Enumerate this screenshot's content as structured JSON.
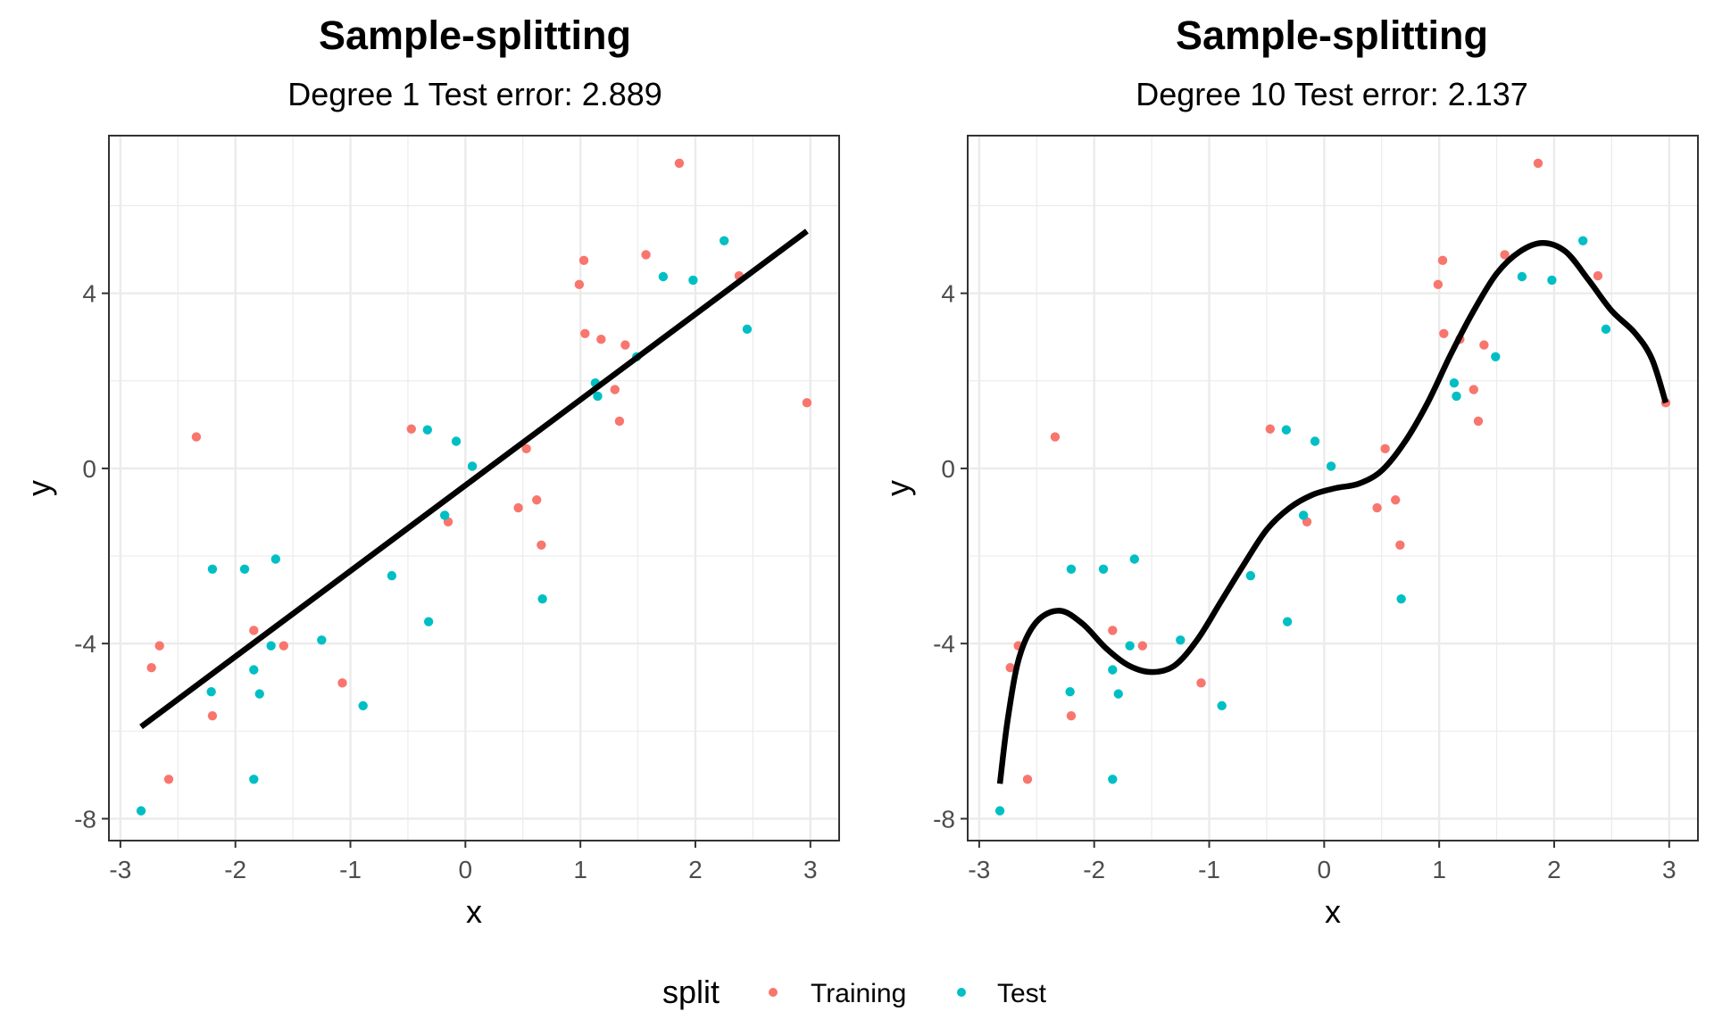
{
  "legend": {
    "title": "split",
    "position": "bottom",
    "entries": [
      {
        "label": "Training",
        "color": "#F8766D"
      },
      {
        "label": "Test",
        "color": "#00BFC4"
      }
    ]
  },
  "colors": {
    "training": "#F8766D",
    "test": "#00BFC4",
    "fit_line": "#000000",
    "grid": "#EBEBEB",
    "panel_border": "#333333"
  },
  "chart_data": [
    {
      "type": "scatter",
      "title": "Sample-splitting",
      "subtitle": "Degree 1 Test error: 2.889",
      "xlabel": "x",
      "ylabel": "y",
      "xlim": [
        -3.1,
        3.25
      ],
      "ylim": [
        -8.5,
        7.6
      ],
      "xticks": [
        -3,
        -2,
        -1,
        0,
        1,
        2,
        3
      ],
      "yticks": [
        -8,
        -4,
        0,
        4
      ],
      "grid": true,
      "series": [
        {
          "name": "Training",
          "points": [
            [
              -2.73,
              -4.55
            ],
            [
              -2.66,
              -4.05
            ],
            [
              -2.58,
              -7.1
            ],
            [
              -2.34,
              0.72
            ],
            [
              -2.2,
              -5.65
            ],
            [
              -1.84,
              -3.7
            ],
            [
              -1.58,
              -4.05
            ],
            [
              -1.07,
              -4.9
            ],
            [
              -0.47,
              0.9
            ],
            [
              -0.15,
              -1.22
            ],
            [
              0.46,
              -0.9
            ],
            [
              0.53,
              0.45
            ],
            [
              0.62,
              -0.72
            ],
            [
              0.66,
              -1.75
            ],
            [
              0.99,
              4.2
            ],
            [
              1.03,
              4.75
            ],
            [
              1.04,
              3.08
            ],
            [
              1.18,
              2.95
            ],
            [
              1.3,
              1.8
            ],
            [
              1.34,
              1.08
            ],
            [
              1.39,
              2.82
            ],
            [
              1.57,
              4.88
            ],
            [
              1.86,
              6.97
            ],
            [
              2.38,
              4.4
            ],
            [
              2.97,
              1.5
            ]
          ]
        },
        {
          "name": "Test",
          "points": [
            [
              -2.82,
              -7.82
            ],
            [
              -2.21,
              -5.1
            ],
            [
              -2.2,
              -2.3
            ],
            [
              -1.92,
              -2.3
            ],
            [
              -1.84,
              -4.6
            ],
            [
              -1.84,
              -7.1
            ],
            [
              -1.79,
              -5.15
            ],
            [
              -1.69,
              -4.05
            ],
            [
              -1.65,
              -2.07
            ],
            [
              -1.25,
              -3.92
            ],
            [
              -0.89,
              -5.42
            ],
            [
              -0.64,
              -2.45
            ],
            [
              -0.33,
              0.88
            ],
            [
              -0.32,
              -3.5
            ],
            [
              -0.18,
              -1.07
            ],
            [
              -0.08,
              0.62
            ],
            [
              0.06,
              0.05
            ],
            [
              0.67,
              -2.98
            ],
            [
              1.13,
              1.95
            ],
            [
              1.15,
              1.65
            ],
            [
              1.49,
              2.55
            ],
            [
              1.72,
              4.38
            ],
            [
              1.98,
              4.3
            ],
            [
              2.25,
              5.2
            ],
            [
              2.45,
              3.18
            ]
          ]
        },
        {
          "name": "Fit",
          "kind": "line",
          "points": [
            [
              -2.82,
              -5.9
            ],
            [
              2.97,
              5.42
            ]
          ]
        }
      ]
    },
    {
      "type": "scatter",
      "title": "Sample-splitting",
      "subtitle": "Degree 10 Test error: 2.137",
      "xlabel": "x",
      "ylabel": "y",
      "xlim": [
        -3.1,
        3.25
      ],
      "ylim": [
        -8.5,
        7.6
      ],
      "xticks": [
        -3,
        -2,
        -1,
        0,
        1,
        2,
        3
      ],
      "yticks": [
        -8,
        -4,
        0,
        4
      ],
      "grid": true,
      "series": [
        {
          "name": "Training",
          "points": [
            [
              -2.73,
              -4.55
            ],
            [
              -2.66,
              -4.05
            ],
            [
              -2.58,
              -7.1
            ],
            [
              -2.34,
              0.72
            ],
            [
              -2.2,
              -5.65
            ],
            [
              -1.84,
              -3.7
            ],
            [
              -1.58,
              -4.05
            ],
            [
              -1.07,
              -4.9
            ],
            [
              -0.47,
              0.9
            ],
            [
              -0.15,
              -1.22
            ],
            [
              0.46,
              -0.9
            ],
            [
              0.53,
              0.45
            ],
            [
              0.62,
              -0.72
            ],
            [
              0.66,
              -1.75
            ],
            [
              0.99,
              4.2
            ],
            [
              1.03,
              4.75
            ],
            [
              1.04,
              3.08
            ],
            [
              1.18,
              2.95
            ],
            [
              1.3,
              1.8
            ],
            [
              1.34,
              1.08
            ],
            [
              1.39,
              2.82
            ],
            [
              1.57,
              4.88
            ],
            [
              1.86,
              6.97
            ],
            [
              2.38,
              4.4
            ],
            [
              2.97,
              1.5
            ]
          ]
        },
        {
          "name": "Test",
          "points": [
            [
              -2.82,
              -7.82
            ],
            [
              -2.21,
              -5.1
            ],
            [
              -2.2,
              -2.3
            ],
            [
              -1.92,
              -2.3
            ],
            [
              -1.84,
              -4.6
            ],
            [
              -1.84,
              -7.1
            ],
            [
              -1.79,
              -5.15
            ],
            [
              -1.69,
              -4.05
            ],
            [
              -1.65,
              -2.07
            ],
            [
              -1.25,
              -3.92
            ],
            [
              -0.89,
              -5.42
            ],
            [
              -0.64,
              -2.45
            ],
            [
              -0.33,
              0.88
            ],
            [
              -0.32,
              -3.5
            ],
            [
              -0.18,
              -1.07
            ],
            [
              -0.08,
              0.62
            ],
            [
              0.06,
              0.05
            ],
            [
              0.67,
              -2.98
            ],
            [
              1.13,
              1.95
            ],
            [
              1.15,
              1.65
            ],
            [
              1.49,
              2.55
            ],
            [
              1.72,
              4.38
            ],
            [
              1.98,
              4.3
            ],
            [
              2.25,
              5.2
            ],
            [
              2.45,
              3.18
            ]
          ]
        },
        {
          "name": "Fit",
          "kind": "line",
          "points": [
            [
              -2.82,
              -7.2
            ],
            [
              -2.75,
              -5.7
            ],
            [
              -2.65,
              -4.3
            ],
            [
              -2.5,
              -3.5
            ],
            [
              -2.3,
              -3.25
            ],
            [
              -2.1,
              -3.55
            ],
            [
              -1.9,
              -4.1
            ],
            [
              -1.7,
              -4.5
            ],
            [
              -1.5,
              -4.65
            ],
            [
              -1.3,
              -4.5
            ],
            [
              -1.1,
              -3.9
            ],
            [
              -0.9,
              -3.05
            ],
            [
              -0.7,
              -2.2
            ],
            [
              -0.5,
              -1.4
            ],
            [
              -0.3,
              -0.9
            ],
            [
              -0.1,
              -0.6
            ],
            [
              0.1,
              -0.45
            ],
            [
              0.3,
              -0.35
            ],
            [
              0.5,
              -0.05
            ],
            [
              0.7,
              0.6
            ],
            [
              0.9,
              1.5
            ],
            [
              1.1,
              2.6
            ],
            [
              1.3,
              3.6
            ],
            [
              1.5,
              4.45
            ],
            [
              1.7,
              4.95
            ],
            [
              1.9,
              5.15
            ],
            [
              2.1,
              4.95
            ],
            [
              2.3,
              4.3
            ],
            [
              2.5,
              3.6
            ],
            [
              2.7,
              3.1
            ],
            [
              2.85,
              2.5
            ],
            [
              2.97,
              1.5
            ]
          ]
        }
      ]
    }
  ]
}
